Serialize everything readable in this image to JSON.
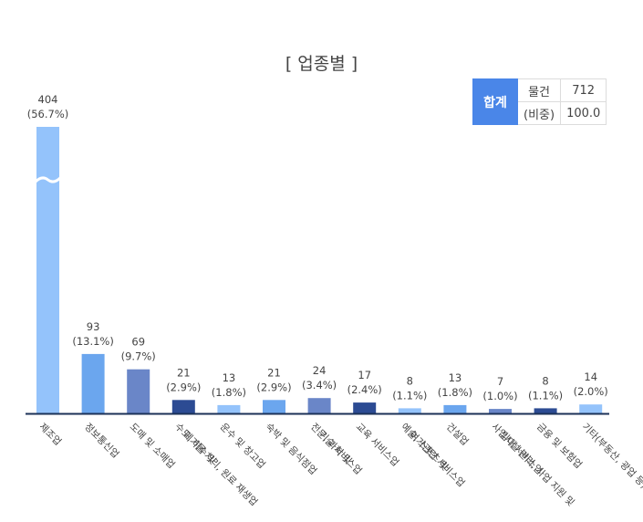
{
  "title": "[ 업종별 ]",
  "summary": {
    "head": "합계",
    "count_label": "물건",
    "count_value": "712",
    "share_label": "(비중)",
    "share_value": "100.0"
  },
  "colors": {
    "light": "#94c3fb",
    "mid": "#6ba6ee",
    "slate": "#6a86c8",
    "dark": "#2c4b93",
    "axis": "#1c3257"
  },
  "chart_data": {
    "type": "bar",
    "title": "[ 업종별 ]",
    "axis_break": true,
    "categories": [
      [
        "제조업"
      ],
      [
        "정보통신업"
      ],
      [
        "도매 및 소매업"
      ],
      [
        "수도, 하수 및",
        "폐기물 처리, 원료 재생업"
      ],
      [
        "운수 및 창고업"
      ],
      [
        "숙박 및 음식점업"
      ],
      [
        "전문, 과학 및",
        "기술 서비스업"
      ],
      [
        "교육 서비스업"
      ],
      [
        "예술, 스포츠 및",
        "여가관련 서비스업"
      ],
      [
        "건설업"
      ],
      [
        "사업시설 관리, 사업 지원 및",
        "임대 서비스업"
      ],
      [
        "금융 및 보험업"
      ],
      [
        "기타(부동산, 광업 등)"
      ]
    ],
    "values": [
      404,
      93,
      69,
      21,
      13,
      21,
      24,
      17,
      8,
      13,
      7,
      8,
      14
    ],
    "labels": [
      "404",
      "93",
      "69",
      "21",
      "13",
      "21",
      "24",
      "17",
      "8",
      "13",
      "7",
      "8",
      "14"
    ],
    "percents": [
      "(56.7%)",
      "(13.1%)",
      "(9.7%)",
      "(2.9%)",
      "(1.8%)",
      "(2.9%)",
      "(3.4%)",
      "(2.4%)",
      "(1.1%)",
      "(1.8%)",
      "(1.0%)",
      "(1.1%)",
      "(2.0%)"
    ],
    "bar_colors": [
      "light",
      "mid",
      "slate",
      "dark",
      "light",
      "mid",
      "slate",
      "dark",
      "light",
      "mid",
      "slate",
      "dark",
      "light"
    ]
  }
}
